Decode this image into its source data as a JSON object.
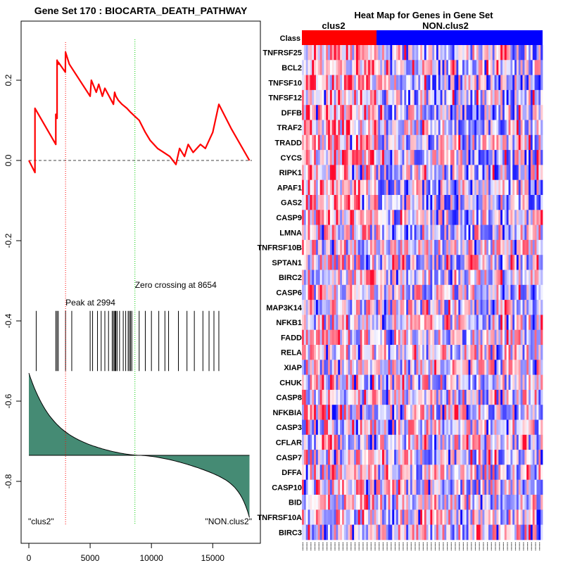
{
  "chart_data": [
    {
      "type": "line",
      "title": "Gene Set  170 : BIOCARTA_DEATH_PATHWAY",
      "xlabel": "",
      "ylabel": "",
      "xlim": [
        0,
        18200
      ],
      "ylim": [
        -0.9,
        0.3
      ],
      "x_ticks": [
        "0",
        "5000",
        "10000",
        "15000"
      ],
      "x_tick_values": [
        0,
        5000,
        10000,
        15000
      ],
      "y_ticks": [
        "0.2",
        "0.0",
        "-0.2",
        "-0.4",
        "-0.6",
        "-0.8"
      ],
      "y_tick_values": [
        0.2,
        0.0,
        -0.2,
        -0.4,
        -0.6,
        -0.8
      ],
      "enrichment_score": {
        "name": "running enrichment score",
        "color": "#ff0000",
        "x": [
          0,
          500,
          500,
          2200,
          2200,
          2300,
          2300,
          2400,
          2400,
          2980,
          2994,
          3300,
          5000,
          5100,
          5500,
          5700,
          6000,
          6200,
          6900,
          7000,
          7100,
          7300,
          7600,
          8000,
          8300,
          8654,
          9000,
          9500,
          9900,
          10500,
          11000,
          11500,
          12000,
          12300,
          12700,
          13000,
          13400,
          14000,
          14400,
          15000,
          15500,
          16500,
          18000
        ],
        "y": [
          0.0,
          -0.03,
          0.13,
          0.04,
          0.115,
          0.105,
          0.25,
          0.24,
          0.245,
          0.22,
          0.27,
          0.24,
          0.16,
          0.2,
          0.17,
          0.19,
          0.16,
          0.18,
          0.14,
          0.17,
          0.16,
          0.15,
          0.14,
          0.13,
          0.12,
          0.11,
          0.1,
          0.07,
          0.05,
          0.03,
          0.02,
          0.01,
          -0.01,
          0.03,
          0.01,
          0.04,
          0.02,
          0.04,
          0.03,
          0.07,
          0.14,
          0.08,
          0.0
        ]
      },
      "baseline": {
        "y": 0.0,
        "style": "dashed"
      },
      "peak": {
        "x": 2994,
        "label": "Peak at 2994",
        "color": "#ff0000"
      },
      "zero_crossing": {
        "x": 8654,
        "label": "Zero crossing at 8654",
        "color": "#00cc00"
      },
      "hits": {
        "name": "gene set members",
        "positions": [
          600,
          2200,
          2300,
          2400,
          2994,
          3500,
          5000,
          5200,
          5600,
          5900,
          6200,
          6500,
          6800,
          6900,
          7000,
          7050,
          7100,
          7200,
          7400,
          7700,
          7900,
          8100,
          8200,
          8300,
          8400,
          9000,
          9500,
          10000,
          10600,
          11100,
          11400,
          12200,
          12900,
          13500,
          14200,
          14700,
          15100,
          15500
        ],
        "y_range": [
          -0.375,
          -0.525
        ]
      },
      "ranked_metric": {
        "name": "ranked list metric",
        "color": "#458b74",
        "baseline_y": -0.735,
        "start_y": -0.53,
        "end_y": -0.89
      },
      "annotations": [
        "\"clus2\"",
        "\"NON.clus2\""
      ]
    },
    {
      "type": "heatmap",
      "title": "Heat Map for Genes in Gene Set",
      "class_row_label": "Class",
      "classes": [
        {
          "name": "clus2",
          "color": "#ff0000",
          "fraction": 0.31
        },
        {
          "name": "NON.clus2",
          "color": "#0000ff",
          "fraction": 0.69
        }
      ],
      "genes": [
        "TNFRSF25",
        "BCL2",
        "TNFSF10",
        "TNFSF12",
        "DFFB",
        "TRAF2",
        "TRADD",
        "CYCS",
        "RIPK1",
        "APAF1",
        "GAS2",
        "CASP9",
        "LMNA",
        "TNFRSF10B",
        "SPTAN1",
        "BIRC2",
        "CASP6",
        "MAP3K14",
        "NFKB1",
        "FADD",
        "RELA",
        "XIAP",
        "CHUK",
        "CASP8",
        "NFKBIA",
        "CASP3",
        "CFLAR",
        "CASP7",
        "DFFA",
        "CASP10",
        "BID",
        "TNFRSF10A",
        "BIRC3"
      ],
      "color_scale": {
        "low": "#0000ff",
        "mid": "#ffffff",
        "high": "#ff0000"
      },
      "num_samples": 120
    }
  ]
}
